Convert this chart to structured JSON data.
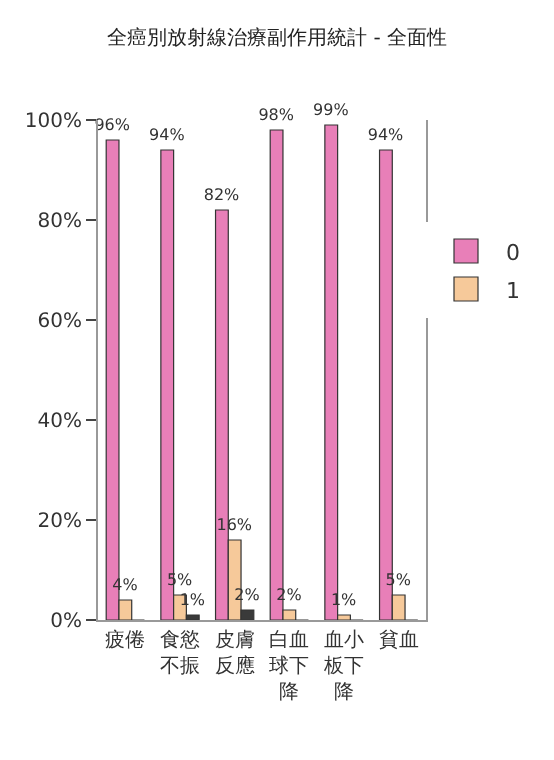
{
  "chart_data": {
    "type": "bar",
    "title": "全癌別放射線治療副作用統計 - 全面性",
    "categories": [
      "疲倦",
      "食慾不振",
      "皮膚反應",
      "白血球下降",
      "血小板下降",
      "貧血"
    ],
    "series": [
      {
        "name": "0",
        "color": "#e87fb8",
        "values": [
          96,
          94,
          82,
          98,
          99,
          94
        ],
        "value_labels": [
          "96%",
          "94%",
          "82%",
          "98%",
          "99%",
          "94%"
        ]
      },
      {
        "name": "1",
        "color": "#f6c99a",
        "values": [
          4,
          5,
          16,
          2,
          1,
          5
        ],
        "value_labels": [
          "4%",
          "5%",
          "16%",
          "2%",
          "1%",
          "5%"
        ]
      },
      {
        "color": "#3a3a3a",
        "values": [
          0,
          1,
          2,
          0,
          0,
          0
        ],
        "value_labels": [
          null,
          "1%",
          "2%",
          null,
          null,
          null
        ]
      }
    ],
    "ylim": [
      0,
      100
    ],
    "yticks": [
      {
        "value": 0,
        "label": "0%"
      },
      {
        "value": 20,
        "label": "20%"
      },
      {
        "value": 40,
        "label": "40%"
      },
      {
        "value": 60,
        "label": "60%"
      },
      {
        "value": 80,
        "label": "80%"
      },
      {
        "value": 100,
        "label": "100%"
      }
    ],
    "legend": "right"
  }
}
